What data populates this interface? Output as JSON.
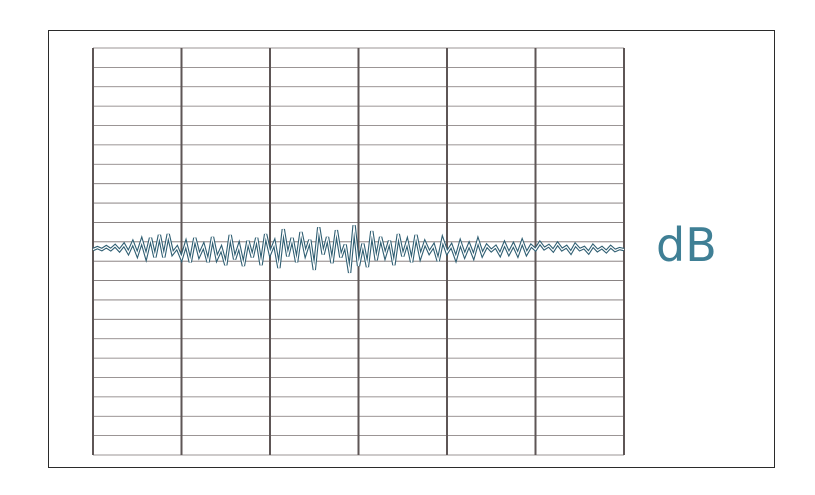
{
  "unit_label": "dB",
  "colors": {
    "frame": "#2b2b2b",
    "major_grid": "#5e5656",
    "minor_grid": "#7a7272",
    "trace_dark": "#2f5e72",
    "trace_light": "#8ec3d4",
    "unit_text": "#3f7f95"
  },
  "chart_data": {
    "type": "line",
    "title": "",
    "xlabel": "",
    "ylabel": "dB",
    "grid": true,
    "vertical_divisions": 6,
    "horizontal_divisions": 21,
    "xlim": [
      0,
      60
    ],
    "ylim": [
      -10.5,
      10.5
    ],
    "series": [
      {
        "x": [
          0,
          0.5,
          1,
          1.5,
          2,
          2.5,
          3,
          3.5,
          4,
          4.5,
          5,
          5.5,
          6,
          6.5,
          7,
          7.5,
          8,
          8.5,
          9,
          9.5,
          10,
          10.5,
          11,
          11.5,
          12,
          12.5,
          13,
          13.5,
          14,
          14.5,
          15,
          15.5,
          16,
          16.5,
          17,
          17.5,
          18,
          18.5,
          19,
          19.5,
          20,
          20.5,
          21,
          21.5,
          22,
          22.5,
          23,
          23.5,
          24,
          24.5,
          25,
          25.5,
          26,
          26.5,
          27,
          27.5,
          28,
          28.5,
          29,
          29.5,
          30,
          30.5,
          31,
          31.5,
          32,
          32.5,
          33,
          33.5,
          34,
          34.5,
          35,
          35.5,
          36,
          36.5,
          37,
          37.5,
          38,
          38.5,
          39,
          39.5,
          40,
          40.5,
          41,
          41.5,
          42,
          42.5,
          43,
          43.5,
          44,
          44.5,
          45,
          45.5,
          46,
          46.5,
          47,
          47.5,
          48,
          48.5,
          49,
          49.5,
          50,
          50.5,
          51,
          51.5,
          52,
          52.5,
          53,
          53.5,
          54,
          54.5,
          55,
          55.5,
          56,
          56.5,
          57,
          57.5,
          58,
          58.5,
          59,
          59.5,
          60
        ],
        "values": [
          0.1,
          0.2,
          0.1,
          0.25,
          0.1,
          0.3,
          0.05,
          0.35,
          -0.05,
          0.45,
          -0.15,
          0.55,
          -0.25,
          0.7,
          -0.3,
          0.85,
          -0.3,
          0.9,
          -0.1,
          0.2,
          -0.35,
          0.4,
          -0.55,
          0.7,
          -0.2,
          0.3,
          -0.55,
          0.75,
          -0.35,
          0.15,
          -0.7,
          0.85,
          -0.4,
          0.3,
          -0.75,
          0.55,
          -0.3,
          0.7,
          -0.7,
          0.9,
          -0.1,
          0.45,
          -0.85,
          1.15,
          -0.25,
          0.7,
          -0.55,
          1.0,
          -0.1,
          0.6,
          -0.95,
          1.25,
          -0.15,
          0.75,
          -0.6,
          1.1,
          -0.3,
          0.35,
          -1.1,
          1.35,
          -0.75,
          0.4,
          -0.8,
          1.05,
          -0.45,
          0.75,
          -0.2,
          0.55,
          -0.7,
          0.9,
          -0.25,
          0.5,
          -0.55,
          0.85,
          -0.25,
          0.45,
          -0.05,
          0.3,
          -0.5,
          0.6,
          -0.05,
          0.3,
          -0.35,
          0.45,
          -0.2,
          0.35,
          -0.25,
          0.55,
          -0.15,
          0.3,
          0.05,
          0.25,
          -0.15,
          0.4,
          -0.1,
          0.35,
          -0.15,
          0.5,
          -0.1,
          0.3,
          0.1,
          0.45,
          0.15,
          0.3,
          0.05,
          0.4,
          0.1,
          0.25,
          -0.05,
          0.35,
          0.1,
          0.2,
          -0.05,
          0.3,
          0.05,
          0.2,
          0.0,
          0.25,
          0.05,
          0.15,
          0.1
        ]
      }
    ]
  }
}
